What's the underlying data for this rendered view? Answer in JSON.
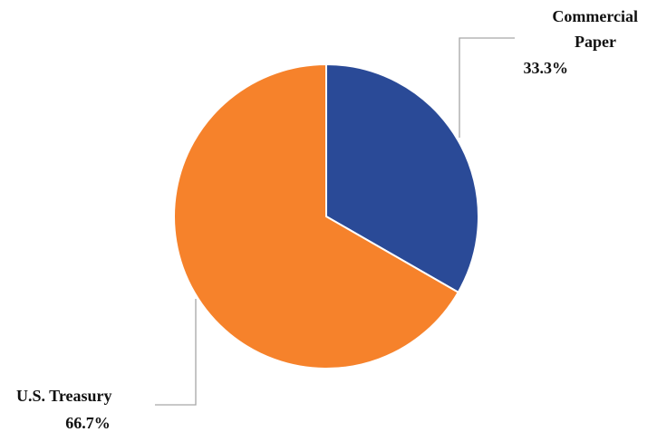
{
  "chart_data": {
    "type": "pie",
    "slices": [
      {
        "label_lines": [
          "Commercial",
          "Paper"
        ],
        "value": 33.3,
        "value_text": "33.3%",
        "color": "#2a4a97"
      },
      {
        "label_lines": [
          "U.S. Treasury"
        ],
        "value": 66.7,
        "value_text": "66.7%",
        "color": "#f6822b"
      }
    ],
    "slice_border_color": "#ffffff",
    "leader_line_color": "#a6a6a6",
    "legend": "none"
  }
}
